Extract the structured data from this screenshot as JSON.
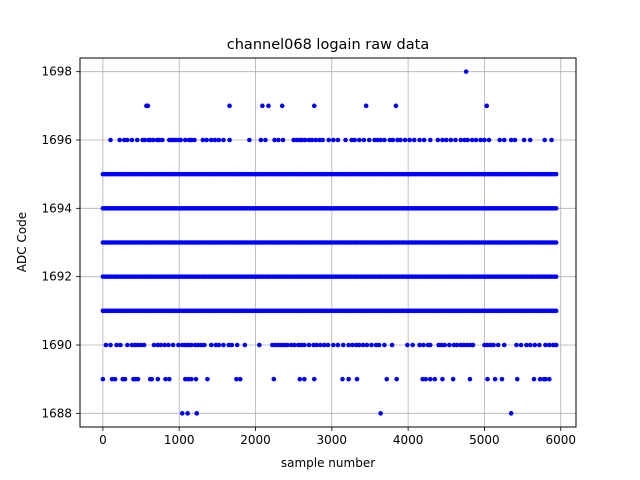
{
  "chart_data": {
    "type": "scatter",
    "title": "channel068 logain raw data",
    "xlabel": "sample number",
    "ylabel": "ADC Code",
    "xlim": [
      -300,
      6200
    ],
    "ylim": [
      1687.6,
      1698.4
    ],
    "xticks": [
      0,
      1000,
      2000,
      3000,
      4000,
      5000,
      6000
    ],
    "yticks": [
      1688,
      1690,
      1692,
      1694,
      1696,
      1698
    ],
    "grid": true,
    "marker_color": "#0000ff",
    "n_samples": 5940,
    "dense_levels": [
      {
        "y": 1691,
        "x_range": [
          0,
          5940
        ]
      },
      {
        "y": 1692,
        "x_range": [
          0,
          5940
        ]
      },
      {
        "y": 1693,
        "x_range": [
          0,
          5940
        ]
      },
      {
        "y": 1694,
        "x_range": [
          0,
          5940
        ]
      },
      {
        "y": 1695,
        "x_range": [
          0,
          5940
        ]
      }
    ],
    "sparse_points": {
      "1698": [
        4760
      ],
      "1697": [
        570,
        590,
        1660,
        2090,
        2170,
        2350,
        2770,
        3450,
        3840,
        5030
      ],
      "1696": [
        100,
        220,
        280,
        320,
        380,
        450,
        520,
        550,
        600,
        620,
        660,
        710,
        740,
        780,
        870,
        900,
        930,
        960,
        1000,
        1020,
        1080,
        1130,
        1160,
        1200,
        1310,
        1360,
        1420,
        1470,
        1520,
        1580,
        1660,
        1920,
        2070,
        2130,
        2250,
        2300,
        2360,
        2500,
        2540,
        2580,
        2610,
        2650,
        2700,
        2740,
        2790,
        2840,
        2880,
        2960,
        3020,
        3080,
        3180,
        3260,
        3300,
        3360,
        3420,
        3490,
        3560,
        3600,
        3640,
        3690,
        3760,
        3800,
        3860,
        3900,
        3960,
        4020,
        4080,
        4150,
        4210,
        4290,
        4390,
        4450,
        4500,
        4560,
        4620,
        4690,
        4740,
        4780,
        4840,
        4890,
        4950,
        5000,
        5060,
        5200,
        5260,
        5350,
        5400,
        5520,
        5600,
        5790,
        5880
      ],
      "1690": [
        40,
        100,
        180,
        230,
        320,
        380,
        420,
        460,
        500,
        540,
        670,
        720,
        760,
        810,
        860,
        920,
        990,
        1040,
        1080,
        1120,
        1160,
        1210,
        1250,
        1290,
        1330,
        1420,
        1480,
        1520,
        1580,
        1650,
        1690,
        1760,
        1860,
        2050,
        2220,
        2260,
        2300,
        2340,
        2380,
        2420,
        2470,
        2510,
        2560,
        2600,
        2640,
        2700,
        2760,
        2800,
        2850,
        2900,
        2950,
        3020,
        3080,
        3150,
        3220,
        3270,
        3320,
        3360,
        3410,
        3460,
        3520,
        3580,
        3620,
        3690,
        3790,
        3990,
        4060,
        4150,
        4200,
        4260,
        4290,
        4400,
        4440,
        4480,
        4540,
        4600,
        4640,
        4690,
        4730,
        4770,
        4810,
        4850,
        5000,
        5040,
        5080,
        5120,
        5180,
        5260,
        5420,
        5480,
        5550,
        5600,
        5660,
        5720,
        5800,
        5850,
        5900,
        5940
      ],
      "1689": [
        0,
        120,
        160,
        260,
        290,
        400,
        430,
        460,
        620,
        640,
        720,
        820,
        870,
        1080,
        1120,
        1160,
        1220,
        1370,
        1750,
        1800,
        2240,
        2580,
        2640,
        2770,
        3140,
        3220,
        3330,
        3720,
        3850,
        4190,
        4230,
        4290,
        4350,
        4450,
        4590,
        4810,
        5040,
        5140,
        5230,
        5430,
        5650,
        5730,
        5780,
        5800,
        5850
      ],
      "1688": [
        1040,
        1110,
        1230,
        3640,
        5350
      ]
    }
  }
}
